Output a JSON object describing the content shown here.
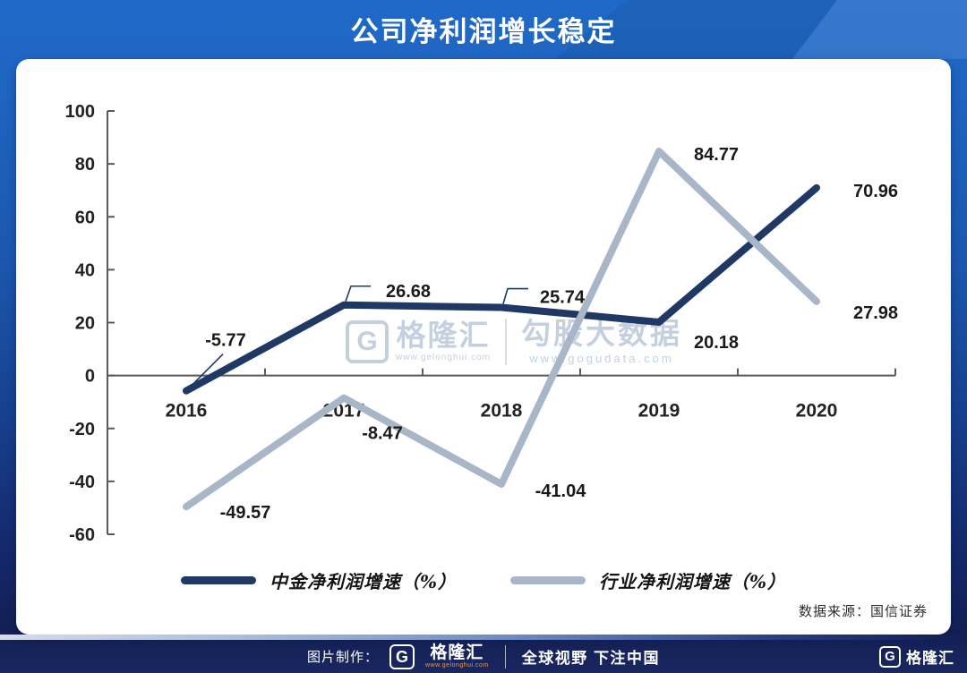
{
  "header": {
    "title": "公司净利润增长稳定"
  },
  "chart_data": {
    "type": "line",
    "title": "公司净利润增长稳定",
    "categories": [
      "2016",
      "2017",
      "2018",
      "2019",
      "2020"
    ],
    "series": [
      {
        "name": "中金净利润增速（%）",
        "values": [
          -5.77,
          26.68,
          25.74,
          20.18,
          70.96
        ],
        "color": "#1f3864"
      },
      {
        "name": "行业净利润增速（%）",
        "values": [
          -49.57,
          -8.47,
          -41.04,
          84.77,
          27.98
        ],
        "color": "#a8b6c7"
      }
    ],
    "ylim": [
      -60,
      100
    ],
    "ytick_step": 20,
    "xlabel": "",
    "ylabel": "",
    "grid": false,
    "data_labels": true,
    "legend_position": "bottom",
    "axis_color": "#595959",
    "label_color": "#1a1a1a"
  },
  "watermark": {
    "brand": "格隆汇",
    "brand_url": "www.gelonghui.com",
    "product": "勾股大数据",
    "product_url": "www.gogudata.com"
  },
  "source_note": "数据来源：国信证券",
  "footer": {
    "made_by_label": "图片制作：",
    "brand": "格隆汇",
    "brand_url": "www.gelonghui.com",
    "slogan": "全球视野 下注中国",
    "corner_brand": "格隆汇"
  }
}
